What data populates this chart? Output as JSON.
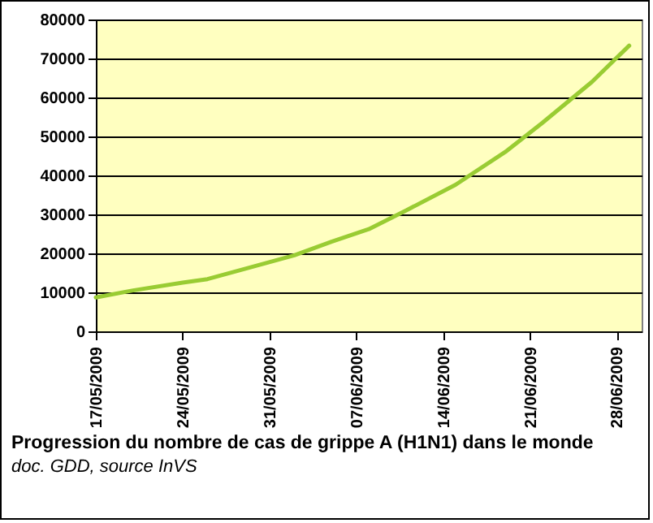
{
  "chart_data": {
    "type": "line",
    "title": "Progression du nombre de cas de grippe A (H1N1) dans le monde",
    "subtitle": "doc. GDD, source InVS",
    "x": [
      "2009-05-17",
      "2009-05-20",
      "2009-05-24",
      "2009-05-26",
      "2009-05-29",
      "2009-06-02",
      "2009-06-05",
      "2009-06-08",
      "2009-06-11",
      "2009-06-15",
      "2009-06-19",
      "2009-06-22",
      "2009-06-26",
      "2009-06-29"
    ],
    "series": [
      {
        "color": "#99cc33",
        "values": [
          8700,
          10500,
          12500,
          13400,
          16000,
          19500,
          23000,
          26200,
          31000,
          37600,
          46000,
          53500,
          64000,
          73300
        ]
      }
    ],
    "xlim": [
      "2009-05-17",
      "2009-06-30"
    ],
    "xticks": [
      {
        "value": "2009-05-17",
        "label": "17/05/2009"
      },
      {
        "value": "2009-05-24",
        "label": "24/05/2009"
      },
      {
        "value": "2009-05-31",
        "label": "31/05/2009"
      },
      {
        "value": "2009-06-07",
        "label": "07/06/2009"
      },
      {
        "value": "2009-06-14",
        "label": "14/06/2009"
      },
      {
        "value": "2009-06-21",
        "label": "21/06/2009"
      },
      {
        "value": "2009-06-28",
        "label": "28/06/2009"
      }
    ],
    "ylim": [
      0,
      80000
    ],
    "yticks": [
      0,
      10000,
      20000,
      30000,
      40000,
      50000,
      60000,
      70000,
      80000
    ],
    "grid": "y",
    "marker": "none",
    "line_style": "solid"
  }
}
